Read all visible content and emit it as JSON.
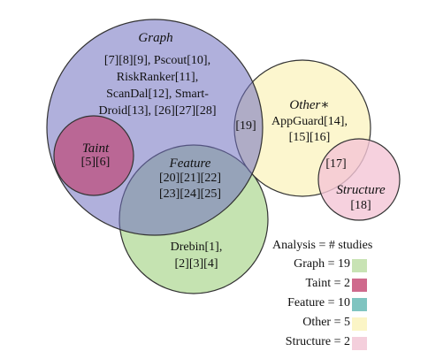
{
  "sets": {
    "graph": {
      "name": "Graph",
      "color": "#9c9ccf",
      "refs": [
        "[7][8][9], Pscout[10],",
        "RiskRanker[11],",
        "ScanDal[12], Smart-",
        "Droid[13], [26][27][28]"
      ]
    },
    "taint": {
      "name": "Taint",
      "color": "#c05a7f",
      "refs": [
        "[5][6]"
      ]
    },
    "feature": {
      "name": "Feature",
      "color": "#bfe0a8",
      "refs": [
        "[20][21][22]",
        "[23][24][25]"
      ]
    },
    "feature_only": {
      "refs": [
        "Drebin[1],",
        "[2][3][4]"
      ]
    },
    "other": {
      "name": "Other∗",
      "color": "#fbf5c6",
      "refs": [
        "AppGuard[14],",
        "[15][16]"
      ]
    },
    "structure": {
      "name": "Structure",
      "color": "#f4cfdc",
      "refs": [
        "[18]"
      ]
    }
  },
  "overlaps": {
    "graph_other": "[19]",
    "other_structure": "[17]"
  },
  "legend": {
    "title": "Analysis = # studies",
    "rows": [
      {
        "label": "Graph = 19",
        "color": "#c8e3b4"
      },
      {
        "label": "Taint = 2",
        "color": "#cf6a8d"
      },
      {
        "label": "Feature = 10",
        "color": "#7fc4c0"
      },
      {
        "label": "Other = 5",
        "color": "#fbf5c6"
      },
      {
        "label": "Structure = 2",
        "color": "#f4cfdc"
      }
    ]
  }
}
